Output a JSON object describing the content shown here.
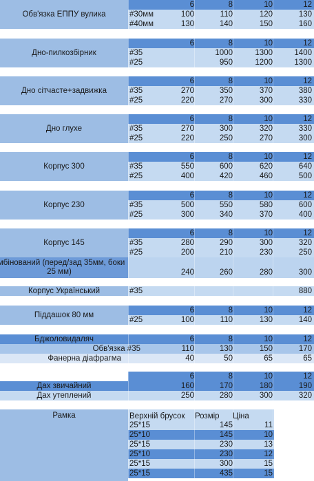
{
  "header_cols": [
    "6",
    "8",
    "10",
    "12"
  ],
  "sections": {
    "obvyazka": {
      "title": "Обв'язка ЕППУ вулика",
      "rows": [
        {
          "label": "#30мм",
          "values": [
            "100",
            "110",
            "120",
            "130"
          ]
        },
        {
          "label": "#40мм",
          "values": [
            "130",
            "140",
            "150",
            "160"
          ]
        }
      ]
    },
    "dno_pylko": {
      "title": "Дно-пилкозбірник",
      "rows": [
        {
          "label": "#35",
          "values": [
            "",
            "1000",
            "1300",
            "1400"
          ]
        },
        {
          "label": "#25",
          "values": [
            "",
            "950",
            "1200",
            "1300"
          ]
        }
      ]
    },
    "dno_sitch": {
      "title": "Дно сітчасте+задвижка",
      "rows": [
        {
          "label": "#35",
          "values": [
            "270",
            "350",
            "370",
            "380"
          ]
        },
        {
          "label": "#25",
          "values": [
            "220",
            "270",
            "300",
            "330"
          ]
        }
      ]
    },
    "dno_gluhe": {
      "title": "Дно глухе",
      "rows": [
        {
          "label": "#35",
          "values": [
            "270",
            "300",
            "320",
            "330"
          ]
        },
        {
          "label": "#25",
          "values": [
            "220",
            "250",
            "270",
            "300"
          ]
        }
      ]
    },
    "korpus300": {
      "title": "Корпус 300",
      "rows": [
        {
          "label": "#35",
          "values": [
            "550",
            "600",
            "620",
            "640"
          ]
        },
        {
          "label": "#25",
          "values": [
            "400",
            "420",
            "460",
            "500"
          ]
        }
      ]
    },
    "korpus230": {
      "title": "Корпус 230",
      "rows": [
        {
          "label": "#35",
          "values": [
            "500",
            "550",
            "580",
            "600"
          ]
        },
        {
          "label": "#25",
          "values": [
            "300",
            "340",
            "370",
            "400"
          ]
        }
      ]
    },
    "korpus145": {
      "title": "Корпус 145",
      "rows": [
        {
          "label": "#35",
          "values": [
            "280",
            "290",
            "300",
            "320"
          ]
        },
        {
          "label": "#25",
          "values": [
            "200",
            "210",
            "230",
            "250"
          ]
        }
      ],
      "combined_title": "омбінований (перед/зад 35мм, боки 25 мм)",
      "combined_values": [
        "240",
        "260",
        "280",
        "300"
      ]
    },
    "korpus_ukr": {
      "title": "Корпус Український",
      "label": "#35",
      "value": "880"
    },
    "piddashok": {
      "title": "Піддашок 80 мм",
      "rows": [
        {
          "label": "#25",
          "values": [
            "100",
            "110",
            "130",
            "140"
          ]
        }
      ]
    },
    "bdzholo": {
      "title": "Бджоловидаляч",
      "rows": [
        {
          "label": "Обв'язка #35",
          "values": [
            "110",
            "130",
            "150",
            "170"
          ]
        },
        {
          "label": "Фанерна діафрагма",
          "values": [
            "40",
            "50",
            "65",
            "65"
          ]
        }
      ]
    },
    "dah": {
      "rows": [
        {
          "label": "Дах звичайний",
          "values": [
            "160",
            "170",
            "180",
            "190"
          ]
        },
        {
          "label": "Дах утеплений",
          "values": [
            "250",
            "280",
            "300",
            "320"
          ]
        }
      ]
    },
    "ramka": {
      "title": "Рамка",
      "headers": [
        "Верхній брусок",
        "Розмір",
        "Ціна"
      ],
      "rows": [
        {
          "brusok": "25*15",
          "rozmir": "145",
          "tsina": "11"
        },
        {
          "brusok": "25*10",
          "rozmir": "145",
          "tsina": "10"
        },
        {
          "brusok": "25*15",
          "rozmir": "230",
          "tsina": "13"
        },
        {
          "brusok": "25*10",
          "rozmir": "230",
          "tsina": "12"
        },
        {
          "brusok": "25*15",
          "rozmir": "300",
          "tsina": "15"
        },
        {
          "brusok": "25*15",
          "rozmir": "435",
          "tsina": "15"
        }
      ]
    }
  }
}
